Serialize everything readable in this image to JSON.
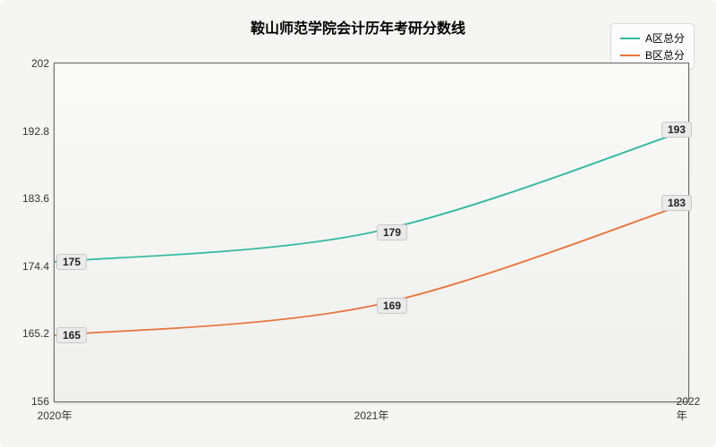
{
  "chart": {
    "type": "line",
    "title": "鞍山师范学院会计历年考研分数线",
    "title_fontsize": 16,
    "background_color": "#f5f5f3",
    "plot_bg_top": "#fafaf8",
    "plot_bg_bottom": "#efefed",
    "border_color": "#666666",
    "x": {
      "categories": [
        "2020年",
        "2021年",
        "2022年"
      ],
      "positions_pct": [
        0,
        50,
        100
      ]
    },
    "y": {
      "min": 156,
      "max": 202,
      "ticks": [
        156,
        165.2,
        174.4,
        183.6,
        192.8,
        202
      ],
      "label_fontsize": 12
    },
    "series": [
      {
        "name": "A区总分",
        "color": "#2fb8a0",
        "values": [
          175,
          179,
          193
        ],
        "line_width": 1.6
      },
      {
        "name": "B区总分",
        "color": "#e8743b",
        "values": [
          165,
          169,
          183
        ],
        "line_width": 1.6
      }
    ],
    "legend": {
      "position": "top-right",
      "bg": "#fdfdfd",
      "border": "#d8d8d8"
    },
    "label_bg": "#eaeaea",
    "label_border": "#c8c8c8"
  }
}
